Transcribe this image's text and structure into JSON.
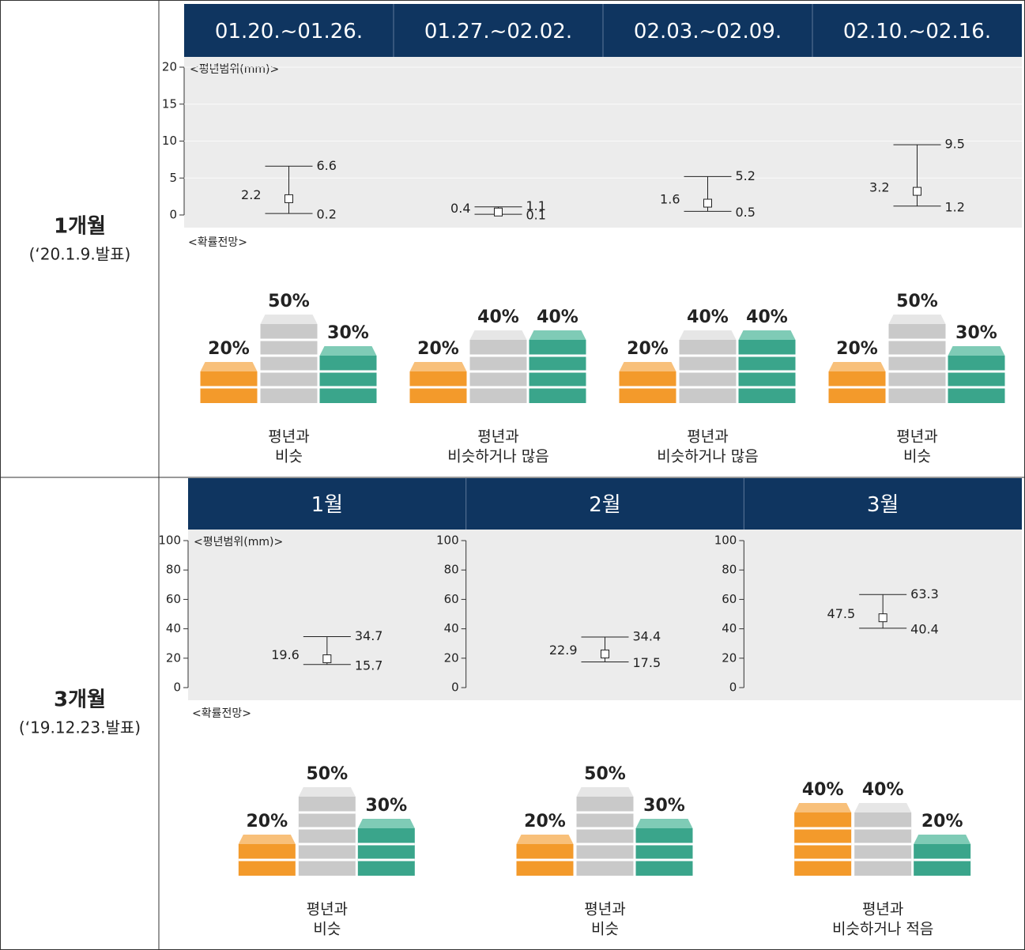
{
  "rows": [
    {
      "label": "1개월",
      "date": "(‘20.1.9.발표)",
      "range_title": "<평년범위(mm)>",
      "prob_title": "<확률전망>",
      "ylim": [
        0,
        20
      ],
      "yticks": [
        0,
        5,
        10,
        15,
        20
      ],
      "periods": [
        {
          "header": "01.20.~01.26.",
          "mean": 2.2,
          "upper": 6.6,
          "lower": 0.2,
          "probs": [
            20,
            50,
            30
          ],
          "prob_labels": [
            "20%",
            "50%",
            "30%"
          ],
          "outlook": [
            "평년과",
            "비슷"
          ]
        },
        {
          "header": "01.27.~02.02.",
          "mean": 0.4,
          "upper": 1.1,
          "lower": 0.1,
          "probs": [
            20,
            40,
            40
          ],
          "prob_labels": [
            "20%",
            "40%",
            "40%"
          ],
          "outlook": [
            "평년과",
            "비슷하거나 많음"
          ]
        },
        {
          "header": "02.03.~02.09.",
          "mean": 1.6,
          "upper": 5.2,
          "lower": 0.5,
          "probs": [
            20,
            40,
            40
          ],
          "prob_labels": [
            "20%",
            "40%",
            "40%"
          ],
          "outlook": [
            "평년과",
            "비슷하거나 많음"
          ]
        },
        {
          "header": "02.10.~02.16.",
          "mean": 3.2,
          "upper": 9.5,
          "lower": 1.2,
          "probs": [
            20,
            50,
            30
          ],
          "prob_labels": [
            "20%",
            "50%",
            "30%"
          ],
          "outlook": [
            "평년과",
            "비슷"
          ]
        }
      ]
    },
    {
      "label": "3개월",
      "date": "(‘19.12.23.발표)",
      "range_title": "<평년범위(mm)>",
      "prob_title": "<확률전망>",
      "ylim": [
        0,
        100
      ],
      "yticks": [
        0,
        20,
        40,
        60,
        80,
        100
      ],
      "periods": [
        {
          "header": "1월",
          "mean": 19.6,
          "upper": 34.7,
          "lower": 15.7,
          "probs": [
            20,
            50,
            30
          ],
          "prob_labels": [
            "20%",
            "50%",
            "30%"
          ],
          "outlook": [
            "평년과",
            "비슷"
          ]
        },
        {
          "header": "2월",
          "mean": 22.9,
          "upper": 34.4,
          "lower": 17.5,
          "probs": [
            20,
            50,
            30
          ],
          "prob_labels": [
            "20%",
            "50%",
            "30%"
          ],
          "outlook": [
            "평년과",
            "비슷"
          ]
        },
        {
          "header": "3월",
          "mean": 47.5,
          "upper": 63.3,
          "lower": 40.4,
          "probs": [
            40,
            40,
            20
          ],
          "prob_labels": [
            "40%",
            "40%",
            "20%"
          ],
          "outlook": [
            "평년과",
            "비슷하거나 적음"
          ]
        }
      ]
    }
  ]
}
